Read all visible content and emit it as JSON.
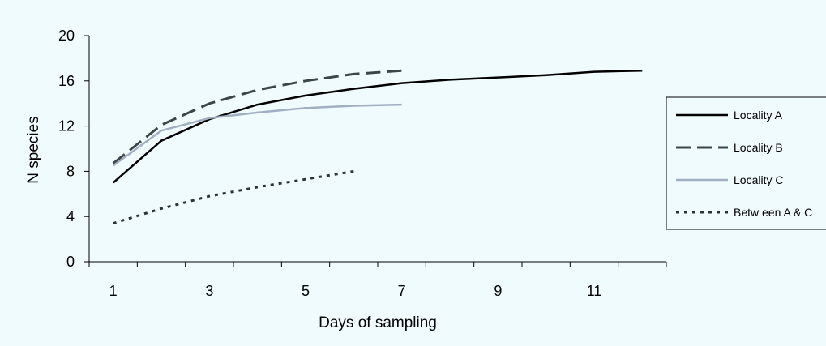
{
  "chart_data": {
    "type": "line",
    "title": "",
    "xlabel": "Days of sampling",
    "ylabel": "N species",
    "xlim": [
      0.5,
      12.5
    ],
    "ylim": [
      0,
      20
    ],
    "x_ticks": [
      1,
      3,
      5,
      7,
      9,
      11
    ],
    "y_ticks": [
      0,
      4,
      8,
      12,
      16,
      20
    ],
    "grid": false,
    "legend_position": "right",
    "series": [
      {
        "name": "Locality A",
        "color": "#000000",
        "dash": "solid",
        "x": [
          1,
          2,
          3,
          4,
          5,
          6,
          7,
          8,
          9,
          10,
          11,
          12
        ],
        "values": [
          7.0,
          10.7,
          12.6,
          13.9,
          14.7,
          15.3,
          15.8,
          16.1,
          16.3,
          16.5,
          16.8,
          16.9
        ]
      },
      {
        "name": "Locality B",
        "color": "#3a4647",
        "dash": "long-dash",
        "x": [
          1,
          2,
          3,
          4,
          5,
          6,
          7
        ],
        "values": [
          8.7,
          12.1,
          14.0,
          15.2,
          16.0,
          16.6,
          16.9
        ]
      },
      {
        "name": "Locality C",
        "color": "#a2aec4",
        "dash": "solid",
        "x": [
          1,
          2,
          3,
          4,
          5,
          6,
          7
        ],
        "values": [
          8.5,
          11.6,
          12.7,
          13.2,
          13.6,
          13.8,
          13.9
        ]
      },
      {
        "name": "Betw een A & C",
        "color": "#2a3334",
        "dash": "dotted",
        "x": [
          1,
          2,
          3,
          4,
          5,
          6
        ],
        "values": [
          3.4,
          4.7,
          5.8,
          6.6,
          7.3,
          8.0
        ]
      }
    ]
  }
}
